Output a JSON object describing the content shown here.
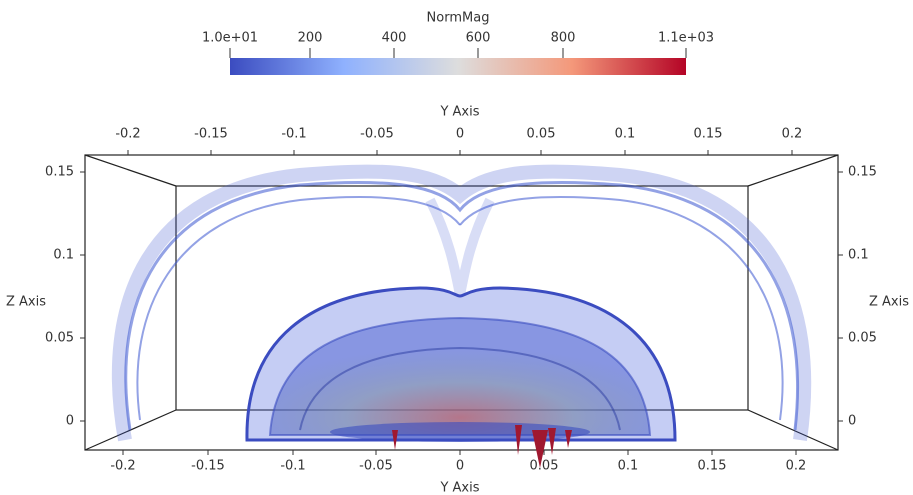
{
  "colorbar": {
    "title": "NormMag",
    "tick_labels": [
      "1.0e+01",
      "200",
      "400",
      "600",
      "800",
      "1.1e+03"
    ]
  },
  "top_axis": {
    "title": "Y Axis",
    "tick_labels": [
      "-0.2",
      "-0.15",
      "-0.1",
      "-0.05",
      "0",
      "0.05",
      "0.1",
      "0.15",
      "0.2"
    ]
  },
  "bottom_axis": {
    "title": "Y Axis",
    "tick_labels": [
      "-0.2",
      "-0.15",
      "-0.1",
      "-0.05",
      "0",
      "0.05",
      "0.1",
      "0.15",
      "0.2"
    ]
  },
  "left_axis": {
    "title": "Z Axis",
    "tick_labels": [
      "0.15",
      "0.1",
      "0.05",
      "0"
    ]
  },
  "right_axis": {
    "title": "Z Axis",
    "tick_labels": [
      "0.15",
      "0.1",
      "0.05",
      "0"
    ]
  }
}
